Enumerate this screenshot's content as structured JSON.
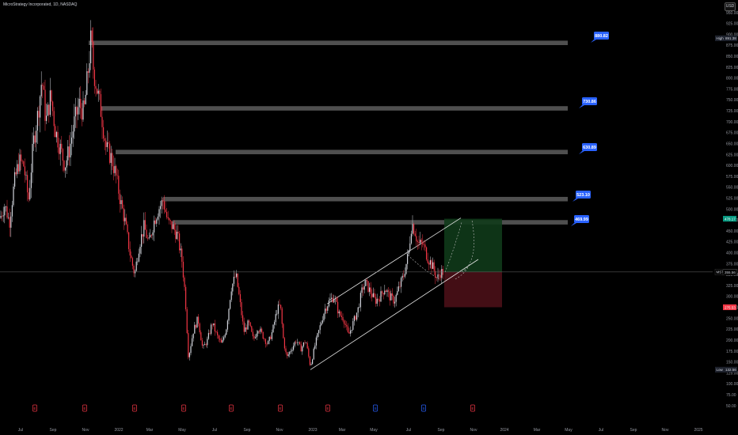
{
  "header": {
    "title": "MicroStrategy Incorporated, 1D, NASDAQ",
    "currency": "USD"
  },
  "chart_data": {
    "type": "candlestick",
    "symbol": "MSTR",
    "y_axis_ticks": [
      950,
      925,
      900,
      875,
      850,
      825,
      800,
      775,
      750,
      725,
      700,
      675,
      650,
      625,
      600,
      575,
      550,
      525,
      500,
      475,
      450,
      425,
      400,
      375,
      350,
      325,
      300,
      275,
      250,
      225,
      200,
      175,
      150,
      125,
      100,
      75,
      50
    ],
    "ylim": [
      40,
      950
    ],
    "x_axis_ticks": [
      "Jul",
      "Sep",
      "Nov",
      "2022",
      "Mar",
      "May",
      "Jul",
      "Sep",
      "Nov",
      "2023",
      "Mar",
      "May",
      "Jul",
      "Sep",
      "Nov",
      "2024",
      "Mar",
      "May",
      "Jul",
      "Sep",
      "Nov",
      "2025"
    ],
    "price_labels": [
      {
        "text": "High",
        "value": "891.38",
        "price": 891.38,
        "bg": "#1e222d",
        "fg": "#d1d4dc"
      },
      {
        "text": "",
        "value": "478.17",
        "price": 478.17,
        "bg": "#089981",
        "fg": "#ffffff"
      },
      {
        "text": "MSTR",
        "value": "356.28",
        "price": 356.28,
        "bg": "#000000",
        "fg": "#d1d4dc"
      },
      {
        "text": "",
        "value": "355.56",
        "price": 355.56,
        "bg": "#000000",
        "fg": "#d1d4dc"
      },
      {
        "text": "",
        "value": "275.53",
        "price": 275.53,
        "bg": "#f23645",
        "fg": "#ffffff"
      },
      {
        "text": "Low",
        "value": "132.56",
        "price": 132.56,
        "bg": "#1e222d",
        "fg": "#d1d4dc"
      }
    ],
    "resistance_levels": [
      {
        "label": "880.82",
        "price": 880.82
      },
      {
        "label": "730.86",
        "price": 730.86
      },
      {
        "label": "630.89",
        "price": 630.89
      },
      {
        "label": "523.10",
        "price": 523.1
      },
      {
        "label": "469.99",
        "price": 469.99
      }
    ],
    "current_price": 356.28,
    "position": {
      "entry": 356.28,
      "target": 478.17,
      "stop": 275.53
    },
    "series_points": [
      [
        0,
        480
      ],
      [
        6,
        510
      ],
      [
        12,
        470
      ],
      [
        18,
        560
      ],
      [
        24,
        610
      ],
      [
        30,
        600
      ],
      [
        36,
        520
      ],
      [
        42,
        650
      ],
      [
        48,
        720
      ],
      [
        53,
        800
      ],
      [
        58,
        700
      ],
      [
        64,
        760
      ],
      [
        70,
        680
      ],
      [
        76,
        640
      ],
      [
        82,
        600
      ],
      [
        88,
        640
      ],
      [
        94,
        700
      ],
      [
        100,
        740
      ],
      [
        106,
        720
      ],
      [
        112,
        830
      ],
      [
        115,
        891.38
      ],
      [
        118,
        820
      ],
      [
        124,
        760
      ],
      [
        128,
        720
      ],
      [
        134,
        640
      ],
      [
        140,
        620
      ],
      [
        146,
        580
      ],
      [
        152,
        520
      ],
      [
        158,
        470
      ],
      [
        164,
        400
      ],
      [
        170,
        350
      ],
      [
        176,
        420
      ],
      [
        182,
        460
      ],
      [
        188,
        420
      ],
      [
        194,
        470
      ],
      [
        200,
        500
      ],
      [
        206,
        520
      ],
      [
        212,
        470
      ],
      [
        218,
        460
      ],
      [
        224,
        440
      ],
      [
        230,
        380
      ],
      [
        234,
        300
      ],
      [
        238,
        160
      ],
      [
        244,
        220
      ],
      [
        250,
        250
      ],
      [
        256,
        180
      ],
      [
        262,
        200
      ],
      [
        268,
        240
      ],
      [
        274,
        210
      ],
      [
        280,
        190
      ],
      [
        286,
        230
      ],
      [
        292,
        320
      ],
      [
        298,
        350
      ],
      [
        302,
        300
      ],
      [
        308,
        220
      ],
      [
        314,
        240
      ],
      [
        320,
        200
      ],
      [
        326,
        230
      ],
      [
        332,
        210
      ],
      [
        338,
        190
      ],
      [
        344,
        220
      ],
      [
        350,
        270
      ],
      [
        354,
        280
      ],
      [
        358,
        200
      ],
      [
        362,
        160
      ],
      [
        368,
        180
      ],
      [
        374,
        200
      ],
      [
        380,
        180
      ],
      [
        386,
        200
      ],
      [
        392,
        140
      ],
      [
        398,
        190
      ],
      [
        404,
        230
      ],
      [
        410,
        270
      ],
      [
        416,
        290
      ],
      [
        422,
        300
      ],
      [
        428,
        260
      ],
      [
        434,
        250
      ],
      [
        440,
        210
      ],
      [
        446,
        240
      ],
      [
        452,
        270
      ],
      [
        458,
        320
      ],
      [
        462,
        330
      ],
      [
        468,
        310
      ],
      [
        474,
        290
      ],
      [
        480,
        300
      ],
      [
        486,
        320
      ],
      [
        492,
        300
      ],
      [
        498,
        290
      ],
      [
        504,
        320
      ],
      [
        510,
        350
      ],
      [
        516,
        400
      ],
      [
        520,
        470
      ],
      [
        524,
        450
      ],
      [
        528,
        420
      ],
      [
        534,
        420
      ],
      [
        540,
        390
      ],
      [
        546,
        370
      ],
      [
        552,
        340
      ],
      [
        556,
        355
      ],
      [
        560,
        356.28
      ]
    ],
    "event_markers": [
      {
        "x": 44,
        "type": "E"
      },
      {
        "x": 107,
        "type": "E"
      },
      {
        "x": 170,
        "type": "E"
      },
      {
        "x": 232,
        "type": "E"
      },
      {
        "x": 292,
        "type": "E"
      },
      {
        "x": 354,
        "type": "E"
      },
      {
        "x": 414,
        "type": "E"
      },
      {
        "x": 474,
        "type": "S"
      },
      {
        "x": 535,
        "type": "S"
      },
      {
        "x": 597,
        "type": "E"
      }
    ]
  }
}
